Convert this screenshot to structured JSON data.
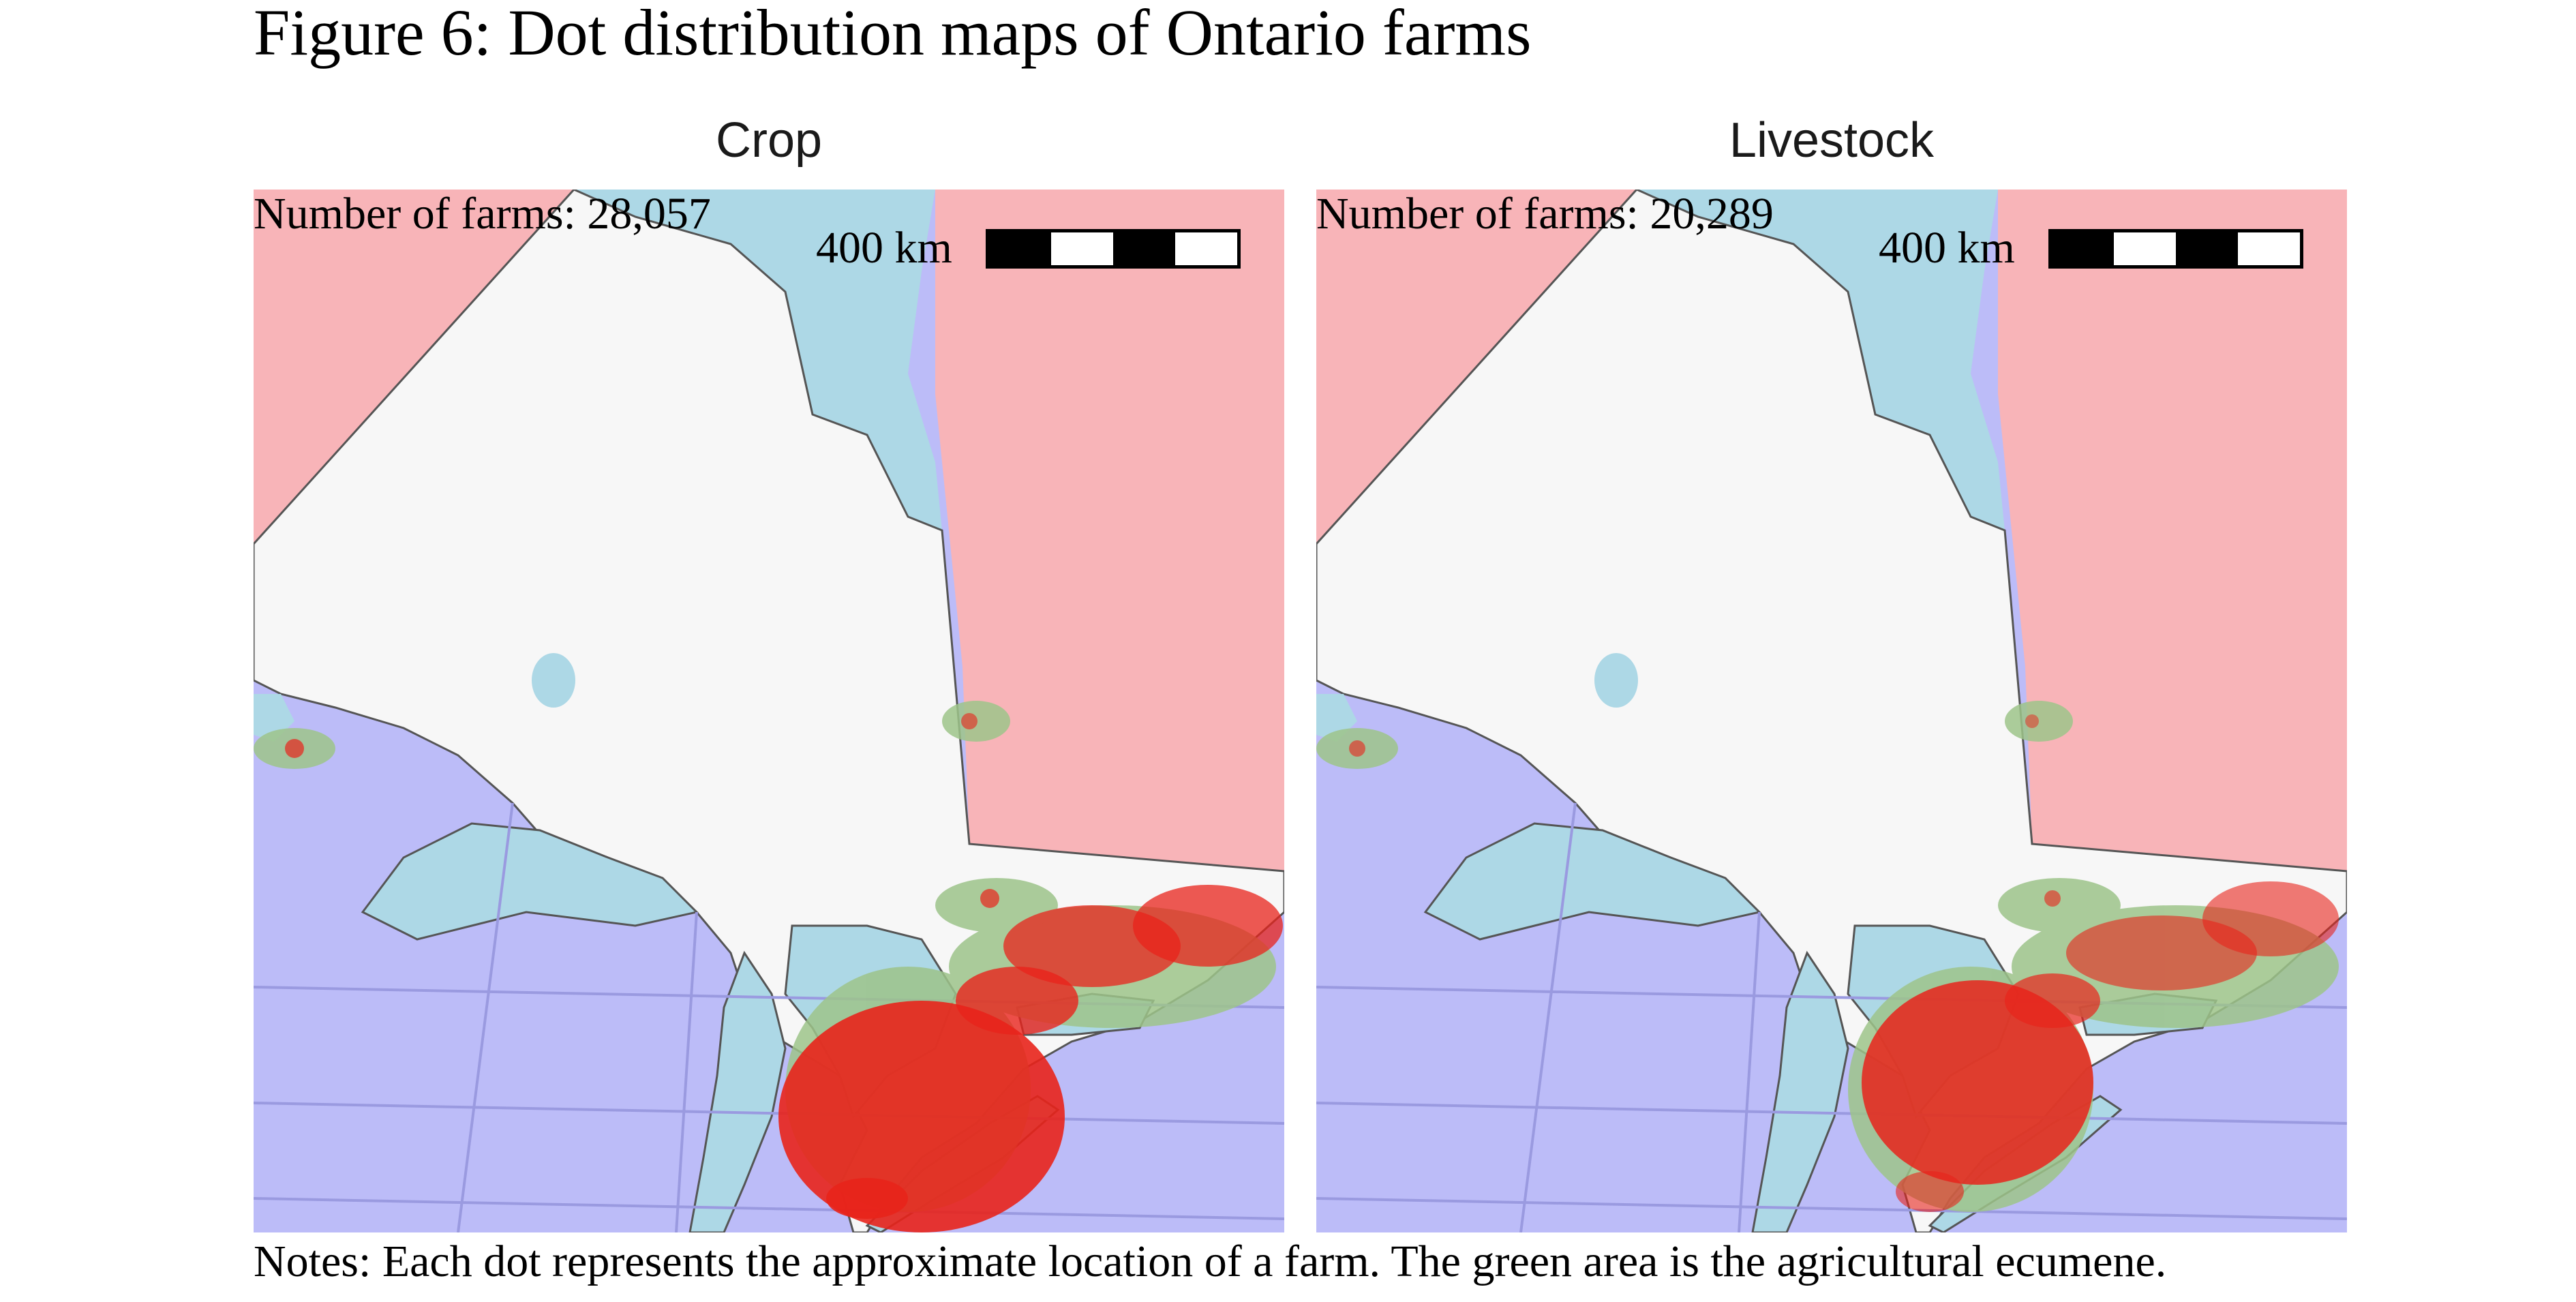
{
  "figure": {
    "title": "Figure 6: Dot distribution maps of Ontario farms",
    "notes": "Notes: Each dot represents the approximate location of a farm. The green area is the agricultural ecumene."
  },
  "panels": [
    {
      "title": "Crop",
      "farm_count": "Number of farms: 28,057",
      "scale_label": "400 km"
    },
    {
      "title": "Livestock",
      "farm_count": "Number of farms: 20,289",
      "scale_label": "400 km"
    }
  ],
  "colors": {
    "ontario_land": "#f7f7f7",
    "quebec_manitoba": "#f8b4b8",
    "united_states": "#bcbcf8",
    "water": "#add8e6",
    "farm_dots": "#e8231b",
    "ecumene": "#9dc48a",
    "border": "#555555"
  }
}
